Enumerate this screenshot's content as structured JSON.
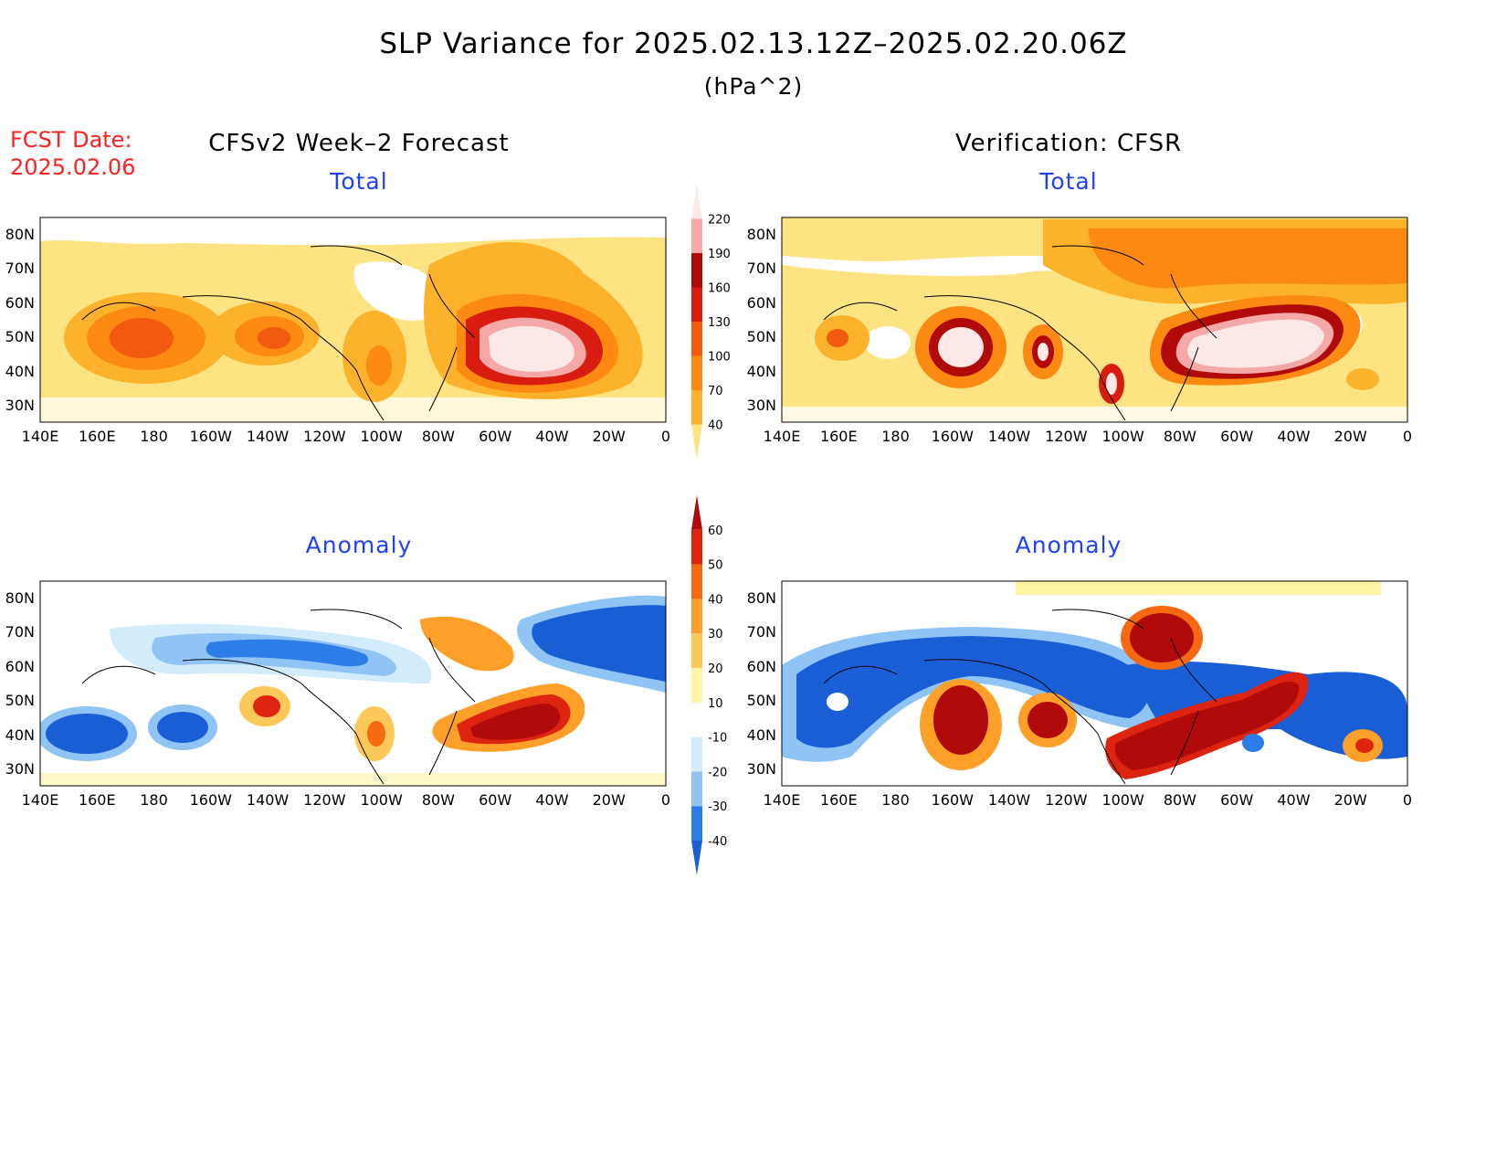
{
  "header": {
    "title": "SLP Variance for 2025.02.13.12Z–2025.02.20.06Z",
    "units": "(hPa^2)",
    "fcst_label": "FCST Date:",
    "fcst_date": "2025.02.06"
  },
  "columns": {
    "left_title": "CFSv2 Week–2 Forecast",
    "right_title": "Verification: CFSR"
  },
  "panels": {
    "total_label": "Total",
    "anomaly_label": "Anomaly"
  },
  "axes": {
    "lon_labels": [
      "140E",
      "160E",
      "180",
      "160W",
      "140W",
      "120W",
      "100W",
      "80W",
      "60W",
      "40W",
      "20W",
      "0"
    ],
    "lat_labels": [
      "80N",
      "70N",
      "60N",
      "50N",
      "40N",
      "30N"
    ]
  },
  "colorbars": {
    "total": {
      "levels": [
        "40",
        "70",
        "100",
        "130",
        "160",
        "190",
        "220"
      ],
      "colors": [
        "#fde382",
        "#fdb22b",
        "#fc8a12",
        "#f25a10",
        "#d81c10",
        "#b00a0a",
        "#f4a8a8",
        "#fde8e8"
      ]
    },
    "anomaly": {
      "levels": [
        "-40",
        "-30",
        "-20",
        "-10",
        "10",
        "20",
        "30",
        "40",
        "50",
        "60"
      ],
      "colors": [
        "#1a5ed6",
        "#2d7de8",
        "#8fc4f4",
        "#d3ecfb",
        "#ffffff",
        "#fef4a4",
        "#fdc85a",
        "#fca02a",
        "#f56a10",
        "#dd2410",
        "#b00a0a"
      ]
    }
  }
}
